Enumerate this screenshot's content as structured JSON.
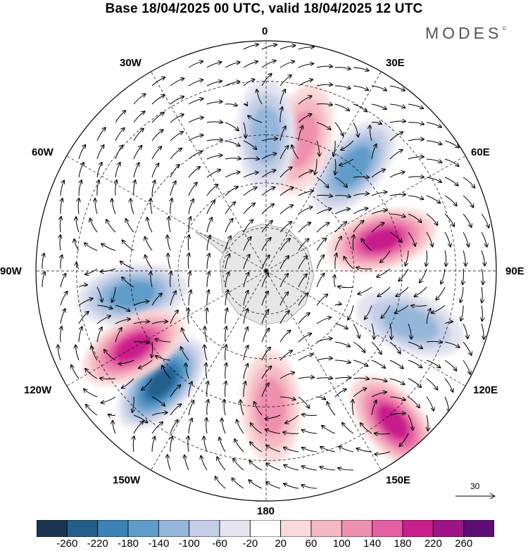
{
  "title": "Base 18/04/2025 00 UTC, valid 18/04/2025 12 UTC",
  "brand": "MODES",
  "brand_mark": "©",
  "longitude_labels": {
    "top": "0",
    "ne30": "30E",
    "ne60": "60E",
    "e90": "90E",
    "se120": "120E",
    "se150": "150E",
    "bottom": "180",
    "sw150": "150W",
    "sw120": "120W",
    "w90": "90W",
    "nw60": "60W",
    "nw30": "30W"
  },
  "reference_vector": {
    "label": "30",
    "icon": "arrow-right-icon"
  },
  "colorbar": {
    "ticks": [
      "-260",
      "-220",
      "-180",
      "-140",
      "-100",
      "-60",
      "-20",
      "20",
      "60",
      "100",
      "140",
      "180",
      "220",
      "260"
    ],
    "colors": [
      "#1a3350",
      "#245f8c",
      "#3a82b8",
      "#5f9cc9",
      "#94b6da",
      "#c3cde5",
      "#e4e4f0",
      "#ffffff",
      "#f9dada",
      "#f5b9c3",
      "#ef8fb0",
      "#e55fa3",
      "#c91f8c",
      "#9e1486",
      "#5f0d76"
    ]
  },
  "chart_data": {
    "type": "polar-stereographic-map",
    "hemisphere": "south",
    "field": "anomaly contours with wind vectors",
    "anomaly_centers": [
      {
        "lon": -100,
        "lat": -45,
        "value": -180
      },
      {
        "lon": -137,
        "lat": -40,
        "value": -260
      },
      {
        "lon": -120,
        "lat": -40,
        "value": 220
      },
      {
        "lon": 75,
        "lat": -50,
        "value": 200
      },
      {
        "lon": 140,
        "lat": -28,
        "value": 200
      },
      {
        "lon": 40,
        "lat": -45,
        "value": -160
      },
      {
        "lon": 15,
        "lat": -45,
        "value": 140
      },
      {
        "lon": 0,
        "lat": -45,
        "value": -140
      },
      {
        "lon": 178,
        "lat": -45,
        "value": 140
      },
      {
        "lon": 110,
        "lat": -40,
        "value": -140
      }
    ]
  }
}
